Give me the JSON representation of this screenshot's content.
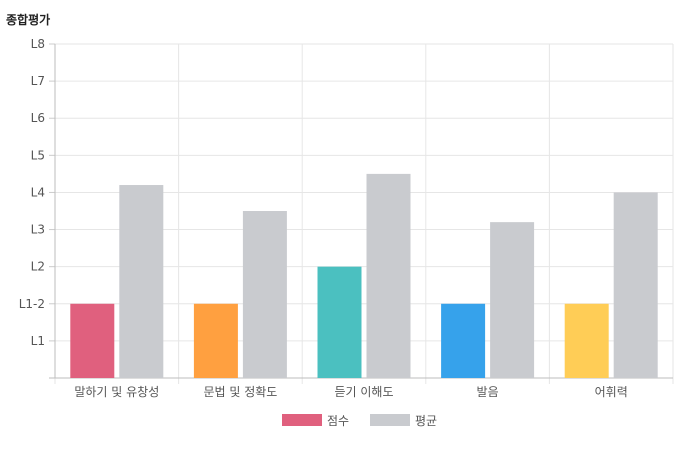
{
  "chart_data": {
    "type": "bar",
    "title": "종합평가",
    "categories": [
      "말하기 및 유창성",
      "문법 및 정확도",
      "듣기 이해도",
      "발음",
      "어휘력"
    ],
    "y_tick_labels": [
      "",
      "L1",
      "L1-2",
      "L2",
      "L3",
      "L4",
      "L5",
      "L6",
      "L7",
      "L8"
    ],
    "ylim": [
      0,
      9
    ],
    "series": [
      {
        "name": "점수",
        "values": [
          2,
          2,
          3,
          2,
          2
        ],
        "colors": [
          "#e0607e",
          "#ffa040",
          "#4bc0c0",
          "#36a2eb",
          "#ffcd56"
        ],
        "legend_color": "#e0607e"
      },
      {
        "name": "평균",
        "values": [
          5.2,
          4.5,
          5.5,
          4.2,
          5.0
        ],
        "colors": [
          "#c9cbcf",
          "#c9cbcf",
          "#c9cbcf",
          "#c9cbcf",
          "#c9cbcf"
        ],
        "legend_color": "#c9cbcf"
      }
    ],
    "grid": true,
    "legend": "bottom"
  }
}
